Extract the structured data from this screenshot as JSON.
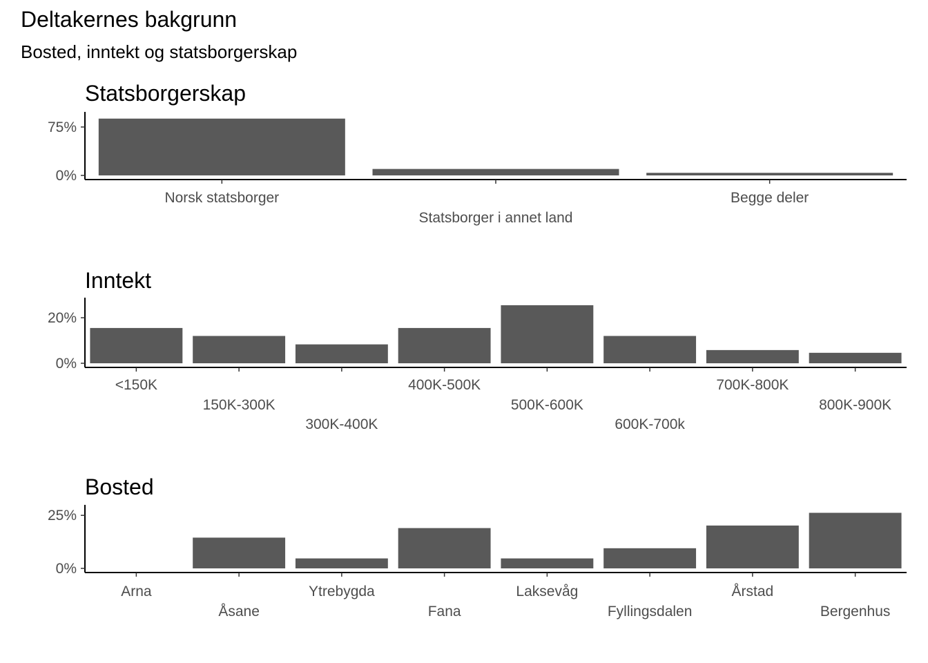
{
  "title": "Deltakernes bakgrunn",
  "subtitle": "Bosted, inntekt og statsborgerskap",
  "chart_data": [
    {
      "type": "bar",
      "title": "Statsborgerskap",
      "categories": [
        "Norsk statsborger",
        "Statsborger i annet land",
        "Begge deler"
      ],
      "values": [
        0.88,
        0.1,
        0.04
      ],
      "ylim": [
        0,
        0.92
      ],
      "yticks": [
        0,
        0.75
      ],
      "ytick_labels": [
        "0%",
        "75%"
      ],
      "bar_color": "#595959"
    },
    {
      "type": "bar",
      "title": "Inntekt",
      "categories": [
        "<150K",
        "150K-300K",
        "300K-400K",
        "400K-500K",
        "500K-600K",
        "600K-700k",
        "700K-800K",
        "800K-900K"
      ],
      "values": [
        0.155,
        0.12,
        0.083,
        0.155,
        0.255,
        0.12,
        0.058,
        0.046
      ],
      "ylim": [
        0,
        0.27
      ],
      "yticks": [
        0,
        0.2
      ],
      "ytick_labels": [
        "0%",
        "20%"
      ],
      "bar_color": "#595959"
    },
    {
      "type": "bar",
      "title": "Bosted",
      "categories": [
        "Arna",
        "Åsane",
        "Ytrebygda",
        "Fana",
        "Laksevåg",
        "Fyllingsdalen",
        "Årstad",
        "Bergenhus"
      ],
      "values": [
        0.0,
        0.145,
        0.047,
        0.19,
        0.047,
        0.095,
        0.202,
        0.262
      ],
      "ylim": [
        0,
        0.28
      ],
      "yticks": [
        0,
        0.25
      ],
      "ytick_labels": [
        "0%",
        "25%"
      ],
      "bar_color": "#595959"
    }
  ]
}
